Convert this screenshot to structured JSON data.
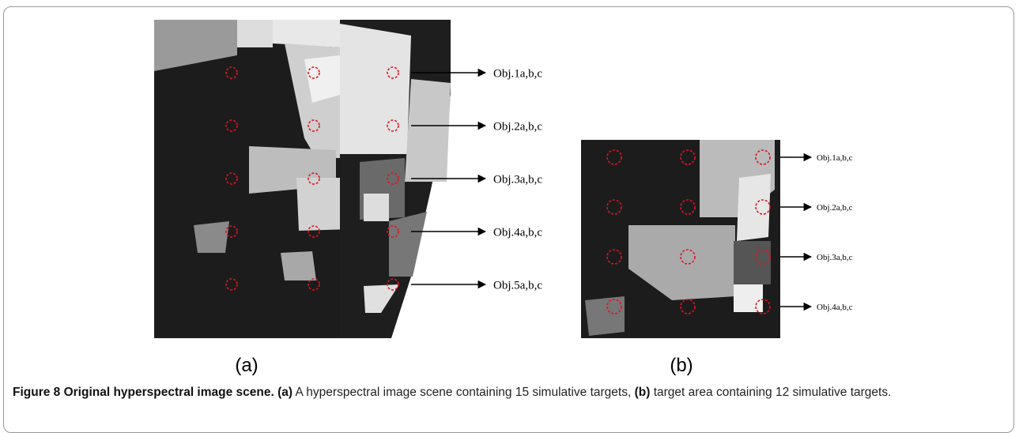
{
  "figure": {
    "panels": [
      {
        "label": "(a)",
        "objects": [
          "Obj.1a,b,c",
          "Obj.2a,b,c",
          "Obj.3a,b,c",
          "Obj.4a,b,c",
          "Obj.5a,b,c"
        ]
      },
      {
        "label": "(b)",
        "objects": [
          "Obj.1a,b,c",
          "Obj.2a,b,c",
          "Obj.3a,b,c",
          "Obj.4a,b,c"
        ]
      }
    ],
    "caption": {
      "title": "Figure 8 Original hyperspectral image scene.",
      "parts": [
        {
          "tag": "(a)",
          "text": "A hyperspectral image scene containing 15 simulative targets,"
        },
        {
          "tag": "(b)",
          "text": "target area containing 12 simulative targets."
        }
      ]
    }
  }
}
